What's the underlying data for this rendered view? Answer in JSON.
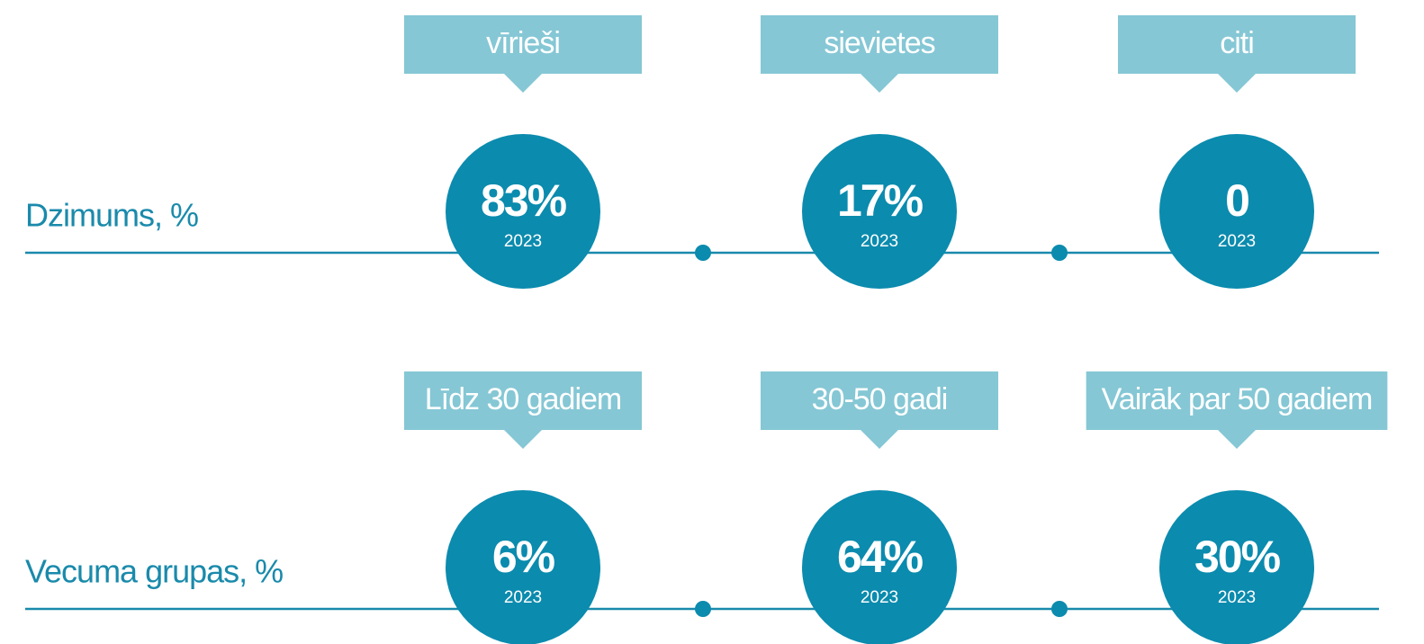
{
  "rows": [
    {
      "label": "Dzimums, %",
      "items": [
        {
          "label": "vīrieši",
          "value": "83%",
          "year": "2023"
        },
        {
          "label": "sievietes",
          "value": "17%",
          "year": "2023"
        },
        {
          "label": "citi",
          "value": "0",
          "year": "2023"
        }
      ]
    },
    {
      "label": "Vecuma grupas, %",
      "items": [
        {
          "label": "Līdz 30 gadiem",
          "value": "6%",
          "year": "2023"
        },
        {
          "label": "30-50 gadi",
          "value": "64%",
          "year": "2023"
        },
        {
          "label": "Vairāk par 50 gadiem",
          "value": "30%",
          "year": "2023"
        }
      ]
    }
  ]
}
